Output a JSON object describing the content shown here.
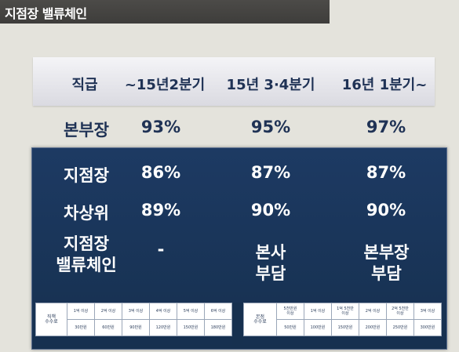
{
  "title": "지점장 밸류체인",
  "header": {
    "label": "직급",
    "periods": [
      "~15년2분기",
      "15년 3·4분기",
      "16년 1분기~"
    ]
  },
  "rows": [
    {
      "label": "본부장",
      "values": [
        "93%",
        "95%",
        "97%"
      ]
    },
    {
      "label": "지점장",
      "values": [
        "86%",
        "87%",
        "87%"
      ]
    },
    {
      "label": "차상위",
      "values": [
        "89%",
        "90%",
        "90%"
      ]
    },
    {
      "label": "지점장\n밸류체인",
      "values": [
        "-",
        "본사\n부담",
        "본부장\n부담"
      ]
    }
  ],
  "fee_tables": [
    {
      "label": "직책\n수수료",
      "tiers": [
        "1억 이상",
        "2억 이상",
        "3억 이상",
        "4억 이상",
        "5억 이상",
        "6억 이상"
      ],
      "amounts": [
        "30만원",
        "60만원",
        "90만원",
        "120만원",
        "150만원",
        "180만원"
      ]
    },
    {
      "label": "본점\n수수료",
      "tiers": [
        "5천만원\n이상",
        "1억 이상",
        "1억 5천만\n이상",
        "2억 이상",
        "2억 5천만\n이상",
        "3억 이상"
      ],
      "amounts": [
        "50만원",
        "100만원",
        "150만원",
        "200만원",
        "250만원",
        "300만원"
      ]
    }
  ],
  "colors": {
    "navy": "#1d3a63",
    "header_text": "#1f3255",
    "title_bar": "#464543"
  }
}
